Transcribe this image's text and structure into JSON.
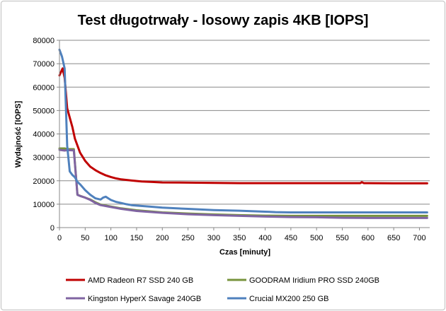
{
  "chart_data": {
    "type": "line",
    "title": "Test długotrwały - losowy zapis 4KB [IOPS]",
    "xlabel": "Czas [minuty]",
    "ylabel": "Wydajność [IOPS]",
    "xlim": [
      0,
      720
    ],
    "ylim": [
      0,
      80000
    ],
    "x_ticks": [
      0,
      50,
      100,
      150,
      200,
      250,
      300,
      350,
      400,
      450,
      500,
      550,
      600,
      650,
      700
    ],
    "y_ticks": [
      0,
      10000,
      20000,
      30000,
      40000,
      50000,
      60000,
      70000,
      80000
    ],
    "grid": "horizontal",
    "legend_position": "bottom",
    "series": [
      {
        "name": "AMD Radeon  R7 SSD 240 GB",
        "color": "#c00000",
        "points": [
          [
            0,
            65000
          ],
          [
            6,
            68000
          ],
          [
            10,
            64000
          ],
          [
            15,
            51000
          ],
          [
            20,
            47000
          ],
          [
            25,
            43000
          ],
          [
            30,
            38000
          ],
          [
            40,
            32000
          ],
          [
            50,
            28500
          ],
          [
            60,
            26000
          ],
          [
            70,
            24500
          ],
          [
            80,
            23300
          ],
          [
            90,
            22300
          ],
          [
            100,
            21600
          ],
          [
            110,
            21000
          ],
          [
            120,
            20600
          ],
          [
            140,
            20100
          ],
          [
            160,
            19700
          ],
          [
            180,
            19500
          ],
          [
            200,
            19300
          ],
          [
            250,
            19200
          ],
          [
            300,
            19100
          ],
          [
            350,
            19000
          ],
          [
            400,
            19000
          ],
          [
            500,
            19000
          ],
          [
            585,
            19000
          ],
          [
            588,
            19400
          ],
          [
            592,
            19000
          ],
          [
            600,
            19000
          ],
          [
            650,
            18900
          ],
          [
            700,
            18900
          ],
          [
            715,
            18900
          ]
        ]
      },
      {
        "name": "GOODRAM Iridium PRO SSD 240GB",
        "color": "#77933c",
        "points": [
          [
            0,
            33800
          ],
          [
            10,
            33800
          ],
          [
            15,
            33500
          ],
          [
            25,
            33500
          ],
          [
            28,
            33500
          ],
          [
            35,
            14000
          ],
          [
            50,
            12800
          ],
          [
            60,
            12000
          ],
          [
            70,
            10800
          ],
          [
            80,
            9800
          ],
          [
            100,
            9000
          ],
          [
            120,
            8200
          ],
          [
            150,
            7400
          ],
          [
            200,
            6500
          ],
          [
            250,
            6000
          ],
          [
            300,
            5600
          ],
          [
            350,
            5300
          ],
          [
            400,
            5100
          ],
          [
            450,
            5000
          ],
          [
            500,
            5000
          ],
          [
            600,
            5000
          ],
          [
            700,
            5000
          ],
          [
            715,
            5000
          ]
        ]
      },
      {
        "name": "Kingston HyperX Savage 240GB",
        "color": "#8064a2",
        "points": [
          [
            0,
            33200
          ],
          [
            10,
            32900
          ],
          [
            15,
            33100
          ],
          [
            28,
            33000
          ],
          [
            35,
            14000
          ],
          [
            40,
            13500
          ],
          [
            50,
            12800
          ],
          [
            60,
            11800
          ],
          [
            70,
            10500
          ],
          [
            80,
            9600
          ],
          [
            100,
            8800
          ],
          [
            120,
            8000
          ],
          [
            150,
            7100
          ],
          [
            200,
            6300
          ],
          [
            250,
            5700
          ],
          [
            300,
            5300
          ],
          [
            350,
            5000
          ],
          [
            400,
            4700
          ],
          [
            450,
            4500
          ],
          [
            500,
            4400
          ],
          [
            550,
            4200
          ],
          [
            600,
            4100
          ],
          [
            650,
            4100
          ],
          [
            700,
            4100
          ],
          [
            715,
            4100
          ]
        ]
      },
      {
        "name": "Crucial MX200 250 GB",
        "color": "#4f81bd",
        "points": [
          [
            0,
            76000
          ],
          [
            5,
            73000
          ],
          [
            10,
            68000
          ],
          [
            15,
            35000
          ],
          [
            20,
            24000
          ],
          [
            25,
            22500
          ],
          [
            30,
            21500
          ],
          [
            35,
            19500
          ],
          [
            40,
            18500
          ],
          [
            50,
            16000
          ],
          [
            60,
            14000
          ],
          [
            70,
            12500
          ],
          [
            80,
            12000
          ],
          [
            85,
            12800
          ],
          [
            90,
            13200
          ],
          [
            95,
            12500
          ],
          [
            100,
            11800
          ],
          [
            110,
            11000
          ],
          [
            120,
            10500
          ],
          [
            130,
            10000
          ],
          [
            140,
            9600
          ],
          [
            150,
            9400
          ],
          [
            175,
            9000
          ],
          [
            200,
            8500
          ],
          [
            250,
            8000
          ],
          [
            300,
            7500
          ],
          [
            350,
            7200
          ],
          [
            400,
            6800
          ],
          [
            420,
            6600
          ],
          [
            450,
            6500
          ],
          [
            500,
            6500
          ],
          [
            600,
            6500
          ],
          [
            700,
            6500
          ],
          [
            715,
            6500
          ]
        ]
      }
    ]
  }
}
